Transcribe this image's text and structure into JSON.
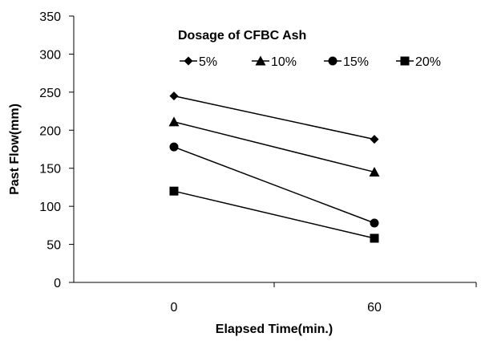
{
  "chart_data": {
    "type": "line",
    "xlabel": "Elapsed Time(min.)",
    "ylabel": "Past Flow(mm)",
    "x": [
      0,
      60
    ],
    "ylim": [
      0,
      350
    ],
    "yticks": [
      0,
      50,
      100,
      150,
      200,
      250,
      300,
      350
    ],
    "xticks": [
      0,
      60
    ],
    "legend_title": "Dosage of CFBC Ash",
    "legend_position": "top",
    "grid": false,
    "series": [
      {
        "name": "5%",
        "marker": "diamond",
        "values": [
          245,
          188
        ]
      },
      {
        "name": "10%",
        "marker": "triangle",
        "values": [
          211,
          145
        ]
      },
      {
        "name": "15%",
        "marker": "circle",
        "values": [
          178,
          78
        ]
      },
      {
        "name": "20%",
        "marker": "square",
        "values": [
          120,
          58
        ]
      }
    ]
  }
}
